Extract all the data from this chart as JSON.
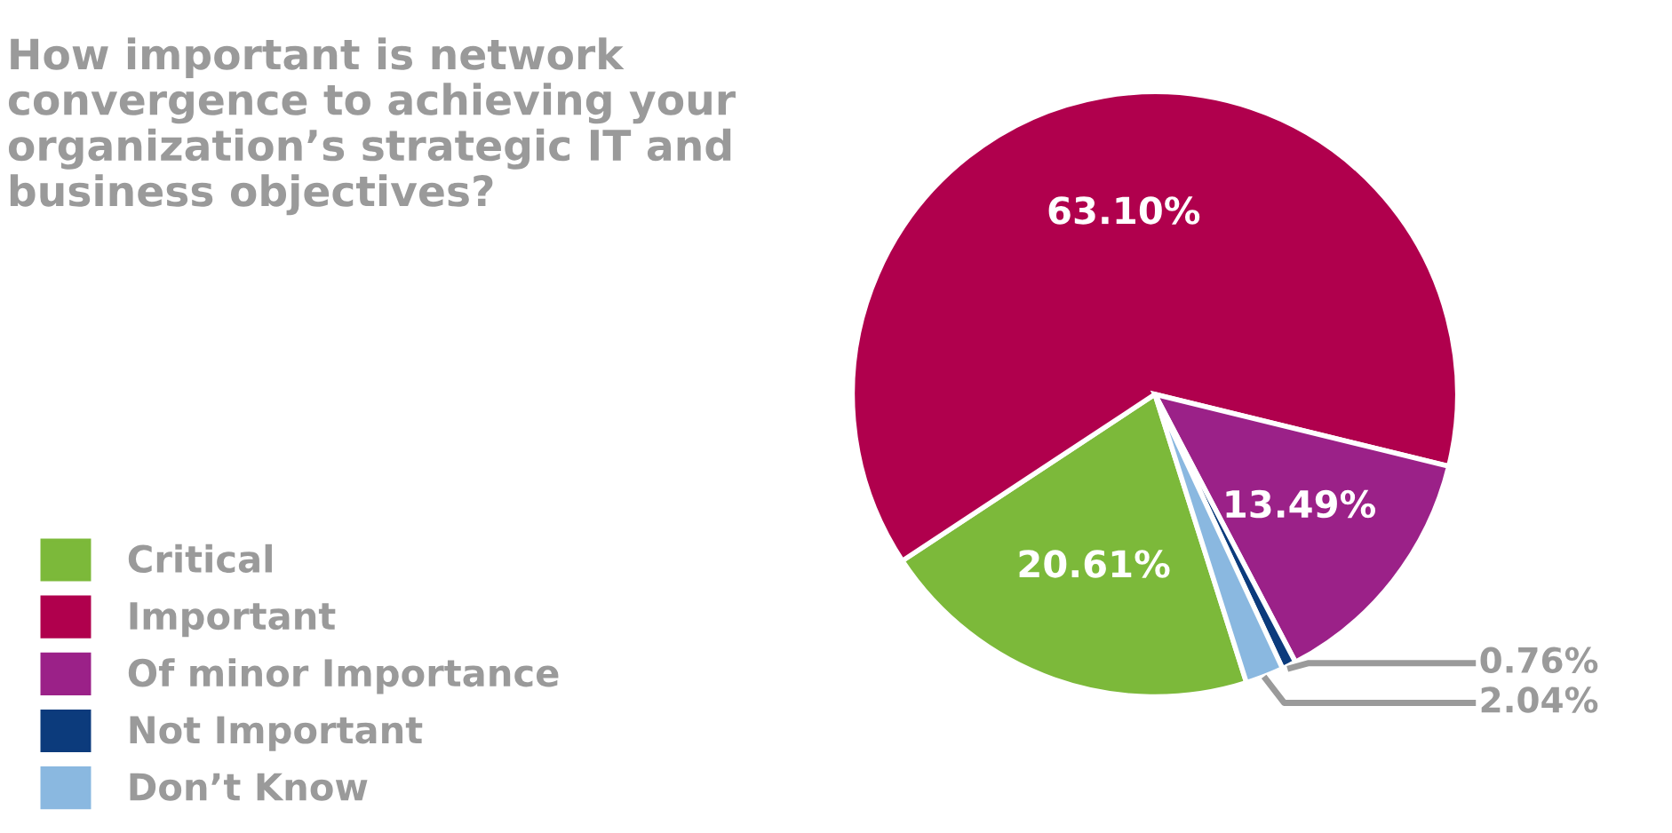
{
  "chart_data": {
    "type": "pie",
    "title": "How important is network convergence to achieving your organization’s strategic IT and business objectives?",
    "categories": [
      "Critical",
      "Important",
      "Of minor Importance",
      "Not Important",
      "Don’t Know"
    ],
    "values": [
      20.61,
      63.1,
      13.49,
      0.76,
      2.04
    ],
    "value_labels": [
      "20.61%",
      "63.10%",
      "13.49%",
      "0.76%",
      "2.04%"
    ],
    "colors": [
      "#7cb93a",
      "#b0004d",
      "#9b2188",
      "#0c3b7c",
      "#8ab8e0"
    ],
    "legend": "left"
  }
}
